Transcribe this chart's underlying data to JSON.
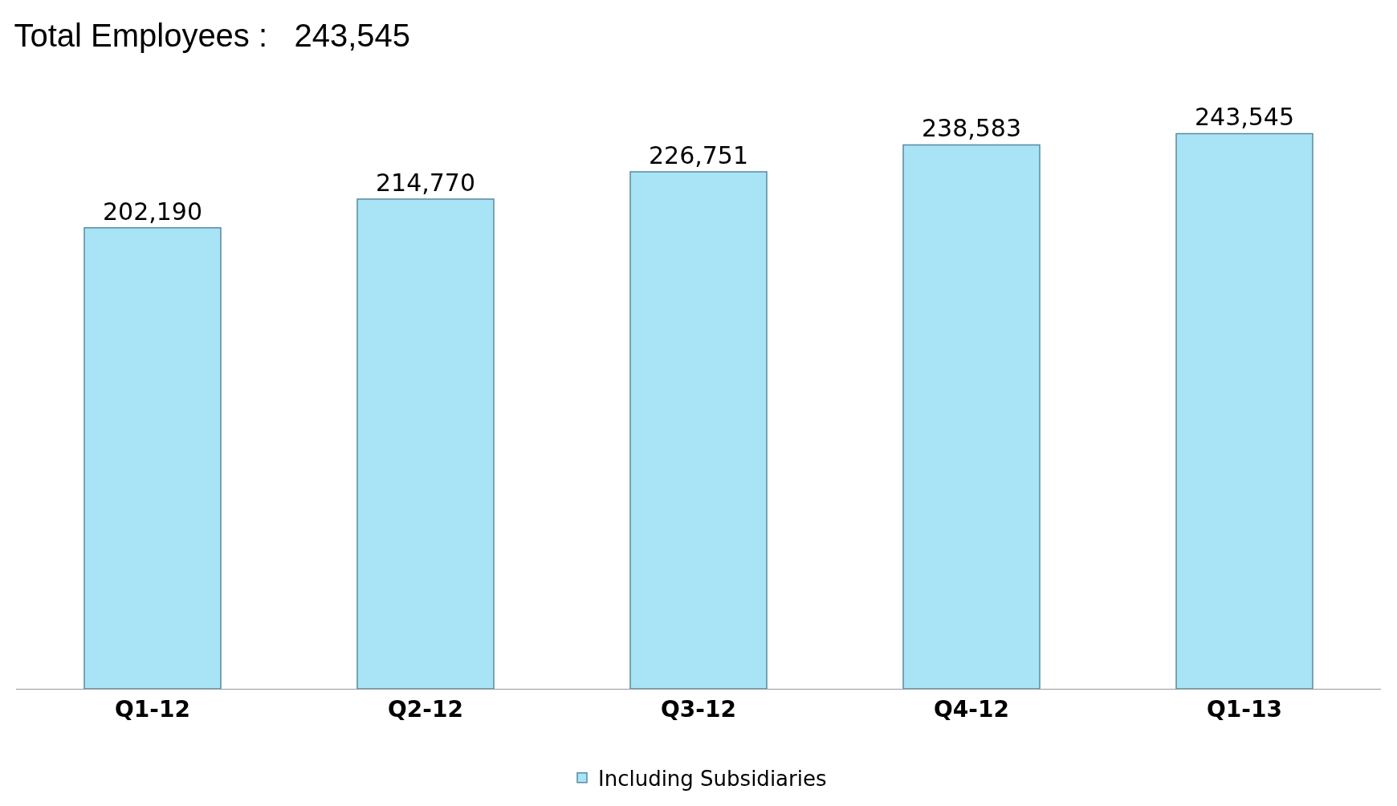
{
  "chart_data": {
    "type": "bar",
    "title": "Total Employees :   243,545",
    "categories": [
      "Q1-12",
      "Q2-12",
      "Q3-12",
      "Q4-12",
      "Q1-13"
    ],
    "series": [
      {
        "name": "Including Subsidiaries",
        "color": "#a8e4f5",
        "values": [
          202190,
          214770,
          226751,
          238583,
          243545
        ],
        "value_labels": [
          "202,190",
          "214,770",
          "226,751",
          "238,583",
          "243,545"
        ]
      }
    ],
    "legend": "bottom"
  }
}
